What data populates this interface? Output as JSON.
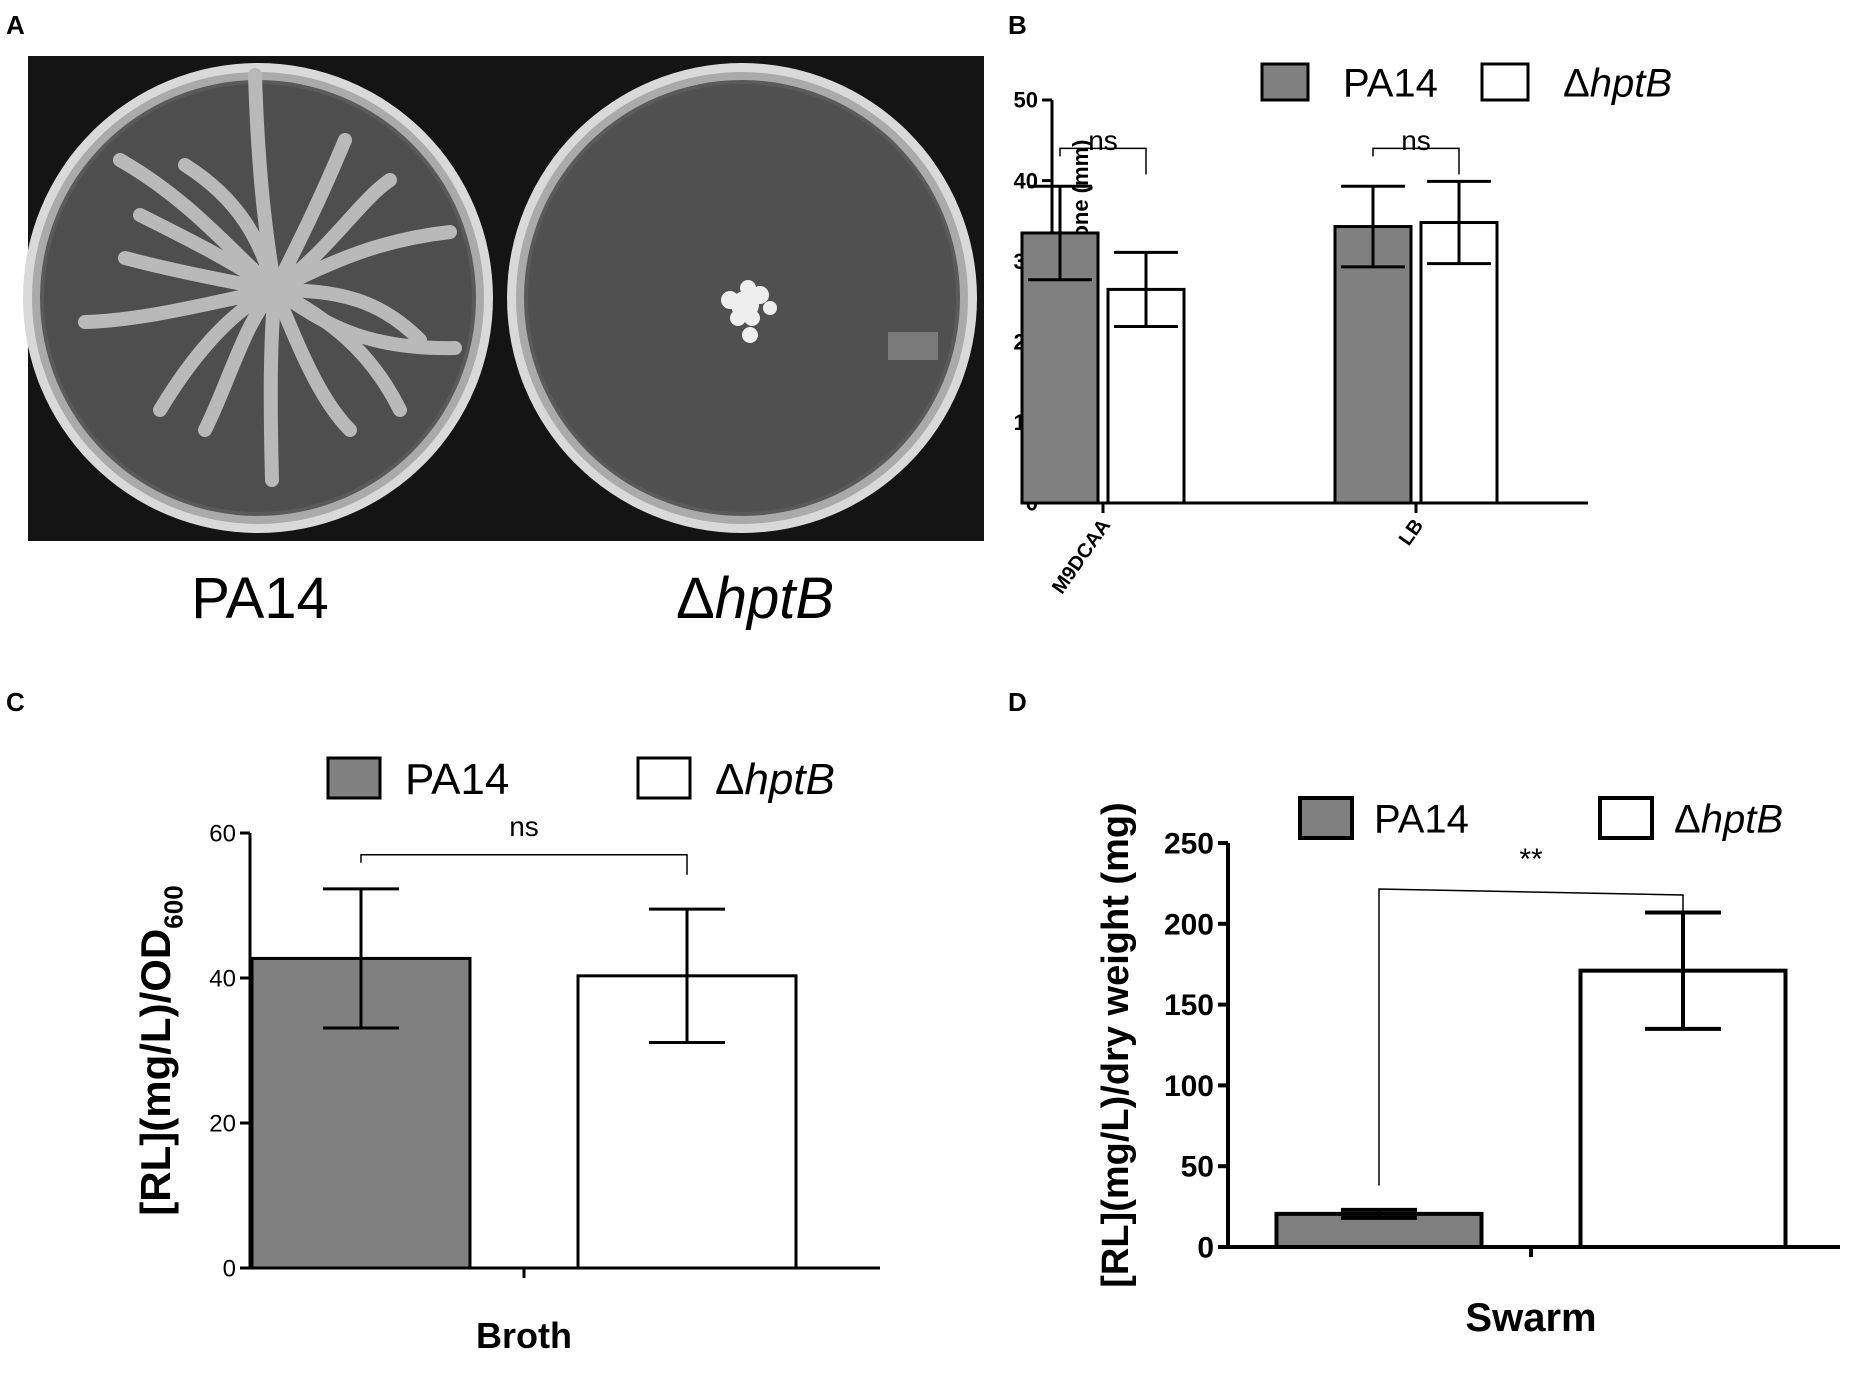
{
  "panels": {
    "A": {
      "letter": "A",
      "plate_labels": {
        "left_prefix": "",
        "left": "PA14",
        "right_prefix": "Δ",
        "right": "hptB"
      }
    },
    "B": {
      "letter": "B"
    },
    "C": {
      "letter": "C"
    },
    "D": {
      "letter": "D"
    }
  },
  "colors": {
    "pa14_fill": "#808080",
    "mutant_fill": "#ffffff",
    "stroke": "#000000",
    "plate_bg": "#141414"
  },
  "chart_data": [
    {
      "id": "B",
      "type": "bar",
      "title": "",
      "xlabel": "",
      "ylabel": "Swimming diameter zone (mm)",
      "ylim": [
        0,
        50
      ],
      "yticks": [
        0,
        10,
        20,
        30,
        40,
        50
      ],
      "categories": [
        "M9DCAA",
        "LB"
      ],
      "legend": {
        "placement": "top",
        "entries": [
          {
            "prefix": "",
            "name": "PA14"
          },
          {
            "prefix": "Δ",
            "name": "hptB"
          }
        ]
      },
      "series": [
        {
          "name": "PA14",
          "values": [
            33.5,
            34.3
          ],
          "errors": [
            5.8,
            5.0
          ]
        },
        {
          "name": "ΔhptB",
          "values": [
            26.5,
            34.8
          ],
          "errors": [
            4.6,
            5.1
          ]
        }
      ],
      "annotations": [
        {
          "text": "ns",
          "category": "M9DCAA"
        },
        {
          "text": "ns",
          "category": "LB"
        }
      ]
    },
    {
      "id": "C",
      "type": "bar",
      "title": "",
      "xlabel": "",
      "ylabel": "[RL](mg/L)/OD600",
      "ylabel_main": "[RL](mg/L)/OD",
      "ylabel_sub": "600",
      "ylim": [
        0,
        60
      ],
      "yticks": [
        0,
        20,
        40,
        60
      ],
      "categories": [
        "Broth"
      ],
      "legend": {
        "placement": "top",
        "entries": [
          {
            "prefix": "",
            "name": "PA14"
          },
          {
            "prefix": "Δ",
            "name": "hptB"
          }
        ]
      },
      "series": [
        {
          "name": "PA14",
          "values": [
            42.7
          ],
          "errors": [
            9.6
          ]
        },
        {
          "name": "ΔhptB",
          "values": [
            40.3
          ],
          "errors": [
            9.2
          ]
        }
      ],
      "annotations": [
        {
          "text": "ns",
          "category": "Broth"
        }
      ]
    },
    {
      "id": "D",
      "type": "bar",
      "title": "",
      "xlabel": "",
      "ylabel": "[RL](mg/L)/dry weight (mg)",
      "ylim": [
        0,
        250
      ],
      "yticks": [
        0,
        50,
        100,
        150,
        200,
        250
      ],
      "categories": [
        "Swarm"
      ],
      "legend": {
        "placement": "top",
        "entries": [
          {
            "prefix": "",
            "name": "PA14"
          },
          {
            "prefix": "Δ",
            "name": "hptB"
          }
        ]
      },
      "series": [
        {
          "name": "PA14",
          "values": [
            20.5
          ],
          "errors": [
            2.5
          ]
        },
        {
          "name": "ΔhptB",
          "values": [
            171
          ],
          "errors": [
            36
          ]
        }
      ],
      "annotations": [
        {
          "text": "**",
          "category": "Swarm"
        }
      ]
    }
  ]
}
